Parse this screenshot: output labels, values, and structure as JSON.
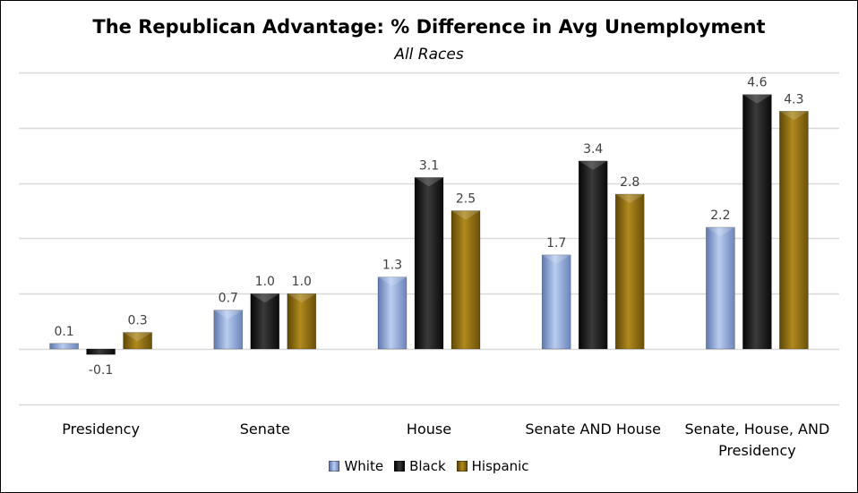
{
  "chart_data": {
    "type": "bar",
    "title": "The Republican Advantage: % Difference in Avg Unemployment",
    "subtitle": "All Races",
    "xlabel": "",
    "ylabel": "",
    "ylim": [
      -1,
      5
    ],
    "grid": true,
    "categories": [
      "Presidency",
      "Senate",
      "House",
      "Senate AND House",
      "Senate, House, AND Presidency"
    ],
    "category_lines": [
      [
        "Presidency"
      ],
      [
        "Senate"
      ],
      [
        "House"
      ],
      [
        "Senate AND House"
      ],
      [
        "Senate, House, AND",
        "Presidency"
      ]
    ],
    "series": [
      {
        "name": "White",
        "values": [
          0.1,
          0.7,
          1.3,
          1.7,
          2.2
        ],
        "labels": [
          "0.1",
          "0.7",
          "1.3",
          "1.7",
          "2.2"
        ],
        "color": "#8FA8D8"
      },
      {
        "name": "Black",
        "values": [
          -0.1,
          1.0,
          3.1,
          3.4,
          4.6
        ],
        "labels": [
          "-0.1",
          "1.0",
          "3.1",
          "3.4",
          "4.6"
        ],
        "color": "#1E1E1E"
      },
      {
        "name": "Hispanic",
        "values": [
          0.3,
          1.0,
          2.5,
          2.8,
          4.3
        ],
        "labels": [
          "0.3",
          "1.0",
          "2.5",
          "2.8",
          "4.3"
        ],
        "color": "#8C6A0A"
      }
    ],
    "legend": {
      "position": "bottom"
    }
  }
}
